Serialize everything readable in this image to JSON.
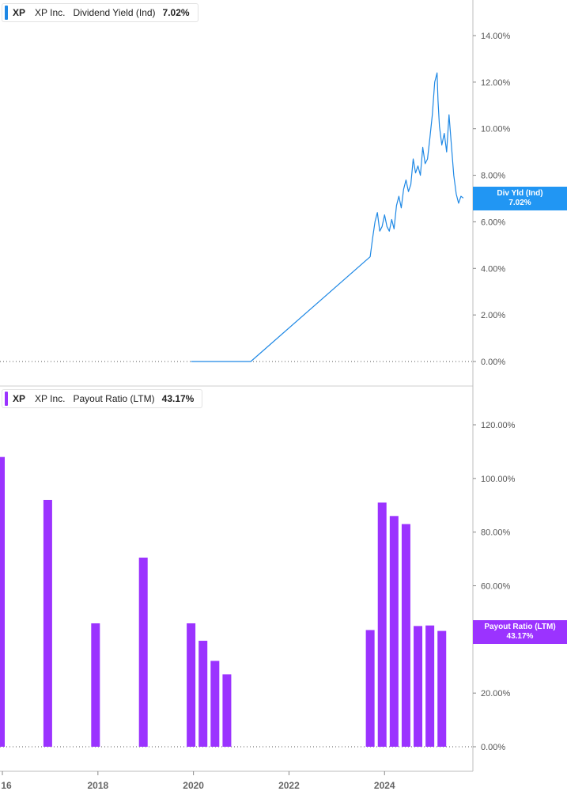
{
  "colors": {
    "yield": "#1e88e5",
    "payout": "#9b33ff",
    "badge_yield": "#2196f3",
    "badge_payout": "#9b33ff"
  },
  "x_axis": {
    "labels": [
      "16",
      "2018",
      "2020",
      "2022",
      "2024"
    ]
  },
  "top_panel": {
    "legend": {
      "ticker": "XP",
      "company": "XP Inc.",
      "metric": "Dividend Yield (Ind)",
      "value": "7.02%"
    },
    "badge": {
      "label": "Div Yld (Ind)",
      "value": "7.02%"
    }
  },
  "bottom_panel": {
    "legend": {
      "ticker": "XP",
      "company": "XP Inc.",
      "metric": "Payout Ratio (LTM)",
      "value": "43.17%"
    },
    "badge": {
      "label": "Payout Ratio (LTM)",
      "value": "43.17%"
    }
  },
  "chart_data": [
    {
      "type": "line",
      "series": [
        {
          "name": "Dividend Yield (Ind)",
          "color": "#1e88e5"
        }
      ],
      "y_ticks": [
        "0.00%",
        "2.00%",
        "4.00%",
        "6.00%",
        "8.00%",
        "10.00%",
        "12.00%",
        "14.00%"
      ],
      "ylim": [
        0,
        14
      ],
      "xlim": [
        2015.95,
        2025.85
      ],
      "x": [
        2019.95,
        2021.2,
        2023.7,
        2023.75,
        2023.8,
        2023.85,
        2023.9,
        2023.95,
        2024.0,
        2024.05,
        2024.1,
        2024.15,
        2024.2,
        2024.25,
        2024.3,
        2024.35,
        2024.4,
        2024.45,
        2024.5,
        2024.55,
        2024.6,
        2024.65,
        2024.7,
        2024.75,
        2024.8,
        2024.85,
        2024.9,
        2024.95,
        2025.0,
        2025.05,
        2025.1,
        2025.12,
        2025.15,
        2025.2,
        2025.25,
        2025.3,
        2025.35,
        2025.4,
        2025.45,
        2025.5,
        2025.55,
        2025.6,
        2025.65
      ],
      "y": [
        0.0,
        0.0,
        4.5,
        5.3,
        6.0,
        6.4,
        5.6,
        5.8,
        6.3,
        5.8,
        5.6,
        6.1,
        5.7,
        6.7,
        7.1,
        6.6,
        7.4,
        7.8,
        7.3,
        7.6,
        8.7,
        8.1,
        8.4,
        8.0,
        9.2,
        8.5,
        8.7,
        9.6,
        10.6,
        12.0,
        12.4,
        11.2,
        10.1,
        9.3,
        9.8,
        9.0,
        10.6,
        9.3,
        8.0,
        7.2,
        6.8,
        7.1,
        7.02
      ]
    },
    {
      "type": "bar",
      "series": [
        {
          "name": "Payout Ratio (LTM)",
          "color": "#9b33ff"
        }
      ],
      "y_ticks": [
        "0.00%",
        "20.00%",
        "40.00%",
        "60.00%",
        "80.00%",
        "100.00%",
        "120.00%"
      ],
      "ylim": [
        0,
        120
      ],
      "xlim": [
        2015.95,
        2025.85
      ],
      "x": [
        2015.95,
        2016.95,
        2017.95,
        2018.95,
        2019.95,
        2020.2,
        2020.45,
        2020.7,
        2023.7,
        2023.95,
        2024.2,
        2024.45,
        2024.7,
        2024.95,
        2025.2
      ],
      "values": [
        108,
        92,
        46,
        70.5,
        46,
        39.5,
        32,
        27,
        43.5,
        91,
        86,
        83,
        45,
        45.2,
        43.17
      ]
    }
  ]
}
